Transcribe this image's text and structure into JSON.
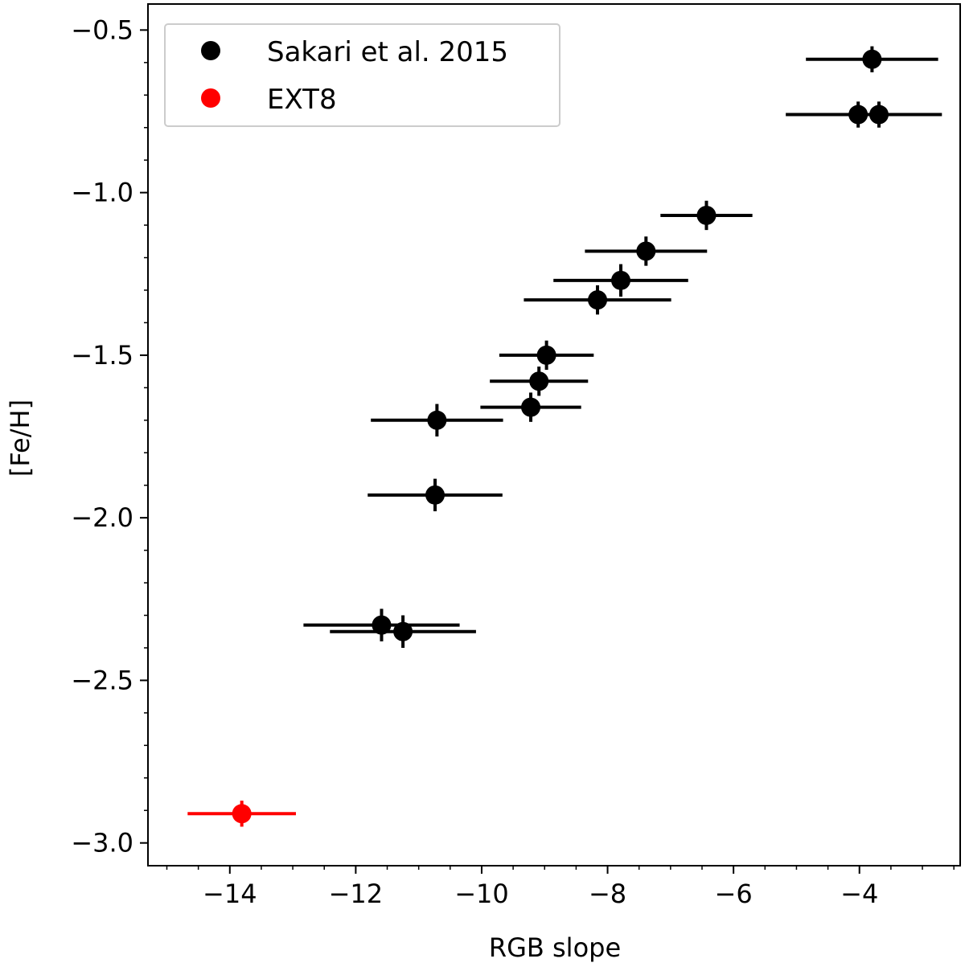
{
  "chart_data": {
    "type": "scatter",
    "title": "",
    "xlabel": "RGB slope",
    "ylabel": "[Fe/H]",
    "xlim": [
      -15.3,
      -2.4
    ],
    "ylim": [
      -3.07,
      -0.42
    ],
    "xticks": [
      -14,
      -12,
      -10,
      -8,
      -6,
      -4
    ],
    "xtick_labels": [
      "−14",
      "−12",
      "−10",
      "−8",
      "−6",
      "−4"
    ],
    "yticks": [
      -3.0,
      -2.5,
      -2.0,
      -1.5,
      -1.0,
      -0.5
    ],
    "ytick_labels": [
      "−3.0",
      "−2.5",
      "−2.0",
      "−1.5",
      "−1.0",
      "−0.5"
    ],
    "x_minor_step": 0.5,
    "y_minor_step": 0.1,
    "grid": false,
    "legend_position": "top-left",
    "series": [
      {
        "name": "Sakari et al. 2015",
        "color": "#000000",
        "points": [
          {
            "x": -3.8,
            "y": -0.59,
            "xerr": 1.05,
            "yerr": 0.04
          },
          {
            "x": -4.02,
            "y": -0.76,
            "xerr": 1.15,
            "yerr": 0.04
          },
          {
            "x": -3.69,
            "y": -0.76,
            "xerr": 1.0,
            "yerr": 0.04
          },
          {
            "x": -6.43,
            "y": -1.07,
            "xerr": 0.73,
            "yerr": 0.045
          },
          {
            "x": -7.39,
            "y": -1.18,
            "xerr": 0.97,
            "yerr": 0.045
          },
          {
            "x": -7.79,
            "y": -1.27,
            "xerr": 1.07,
            "yerr": 0.05
          },
          {
            "x": -8.16,
            "y": -1.33,
            "xerr": 1.17,
            "yerr": 0.045
          },
          {
            "x": -8.97,
            "y": -1.5,
            "xerr": 0.75,
            "yerr": 0.045
          },
          {
            "x": -9.09,
            "y": -1.58,
            "xerr": 0.78,
            "yerr": 0.045
          },
          {
            "x": -9.22,
            "y": -1.66,
            "xerr": 0.8,
            "yerr": 0.045
          },
          {
            "x": -10.71,
            "y": -1.7,
            "xerr": 1.05,
            "yerr": 0.05
          },
          {
            "x": -10.74,
            "y": -1.93,
            "xerr": 1.07,
            "yerr": 0.05
          },
          {
            "x": -11.59,
            "y": -2.33,
            "xerr": 1.24,
            "yerr": 0.05
          },
          {
            "x": -11.25,
            "y": -2.35,
            "xerr": 1.16,
            "yerr": 0.05
          }
        ]
      },
      {
        "name": "EXT8",
        "color": "#ff0000",
        "points": [
          {
            "x": -13.81,
            "y": -2.91,
            "xerr": 0.86,
            "yerr": 0.04
          }
        ]
      }
    ]
  }
}
